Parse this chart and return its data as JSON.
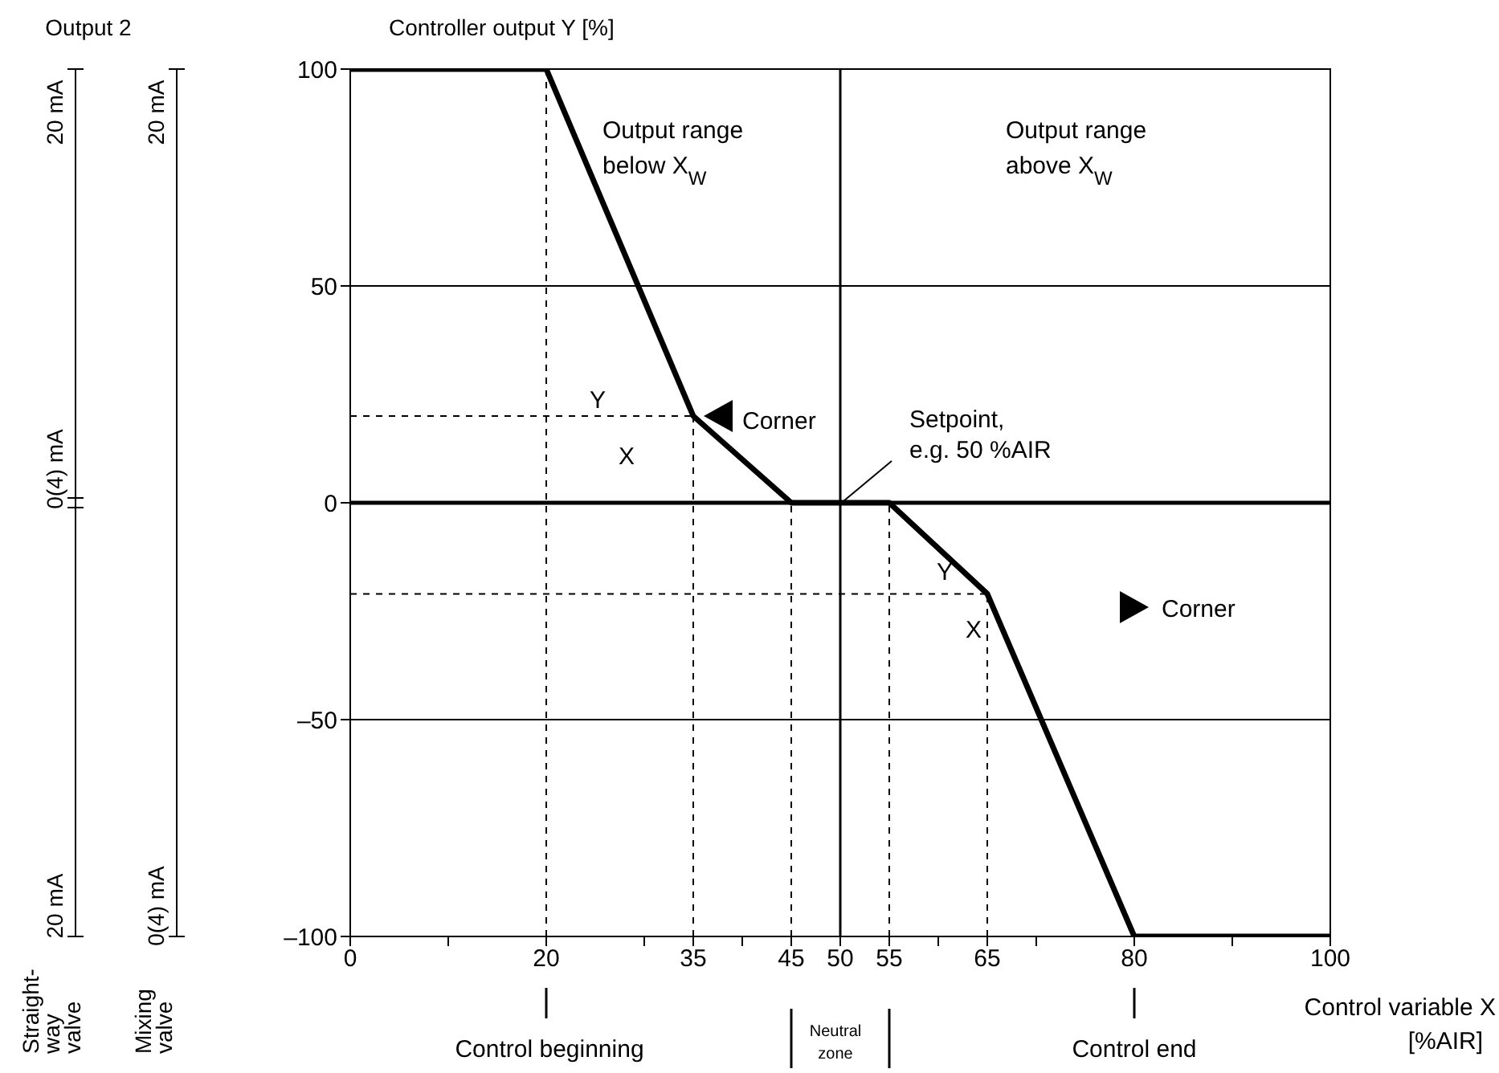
{
  "chart_data": {
    "type": "line",
    "ylabel": "Controller output Y [%]",
    "xlabel": "Control variable X\n[%AIR]",
    "series": [
      {
        "color": "#000000",
        "x": [
          0,
          20,
          35,
          45,
          55,
          65,
          80,
          100
        ],
        "values": [
          100,
          100,
          20,
          0,
          0,
          -21,
          -100,
          -100
        ]
      }
    ],
    "xlim": [
      0,
      100
    ],
    "ylim": [
      -100,
      100
    ],
    "xticks": [
      0,
      {
        "value": 10,
        "label": null
      },
      20,
      {
        "value": 30,
        "label": null
      },
      35,
      {
        "value": 40,
        "label": null
      },
      45,
      50,
      55,
      {
        "value": 60,
        "label": null
      },
      65,
      {
        "value": 70,
        "label": null
      },
      80,
      {
        "value": 90,
        "label": null
      },
      100
    ],
    "yticks": [
      {
        "value": -100,
        "label": "–100"
      },
      {
        "value": -50,
        "label": "–50"
      },
      0,
      50,
      100
    ],
    "grid": "y",
    "legend": false,
    "marker": "none",
    "line_style": "solid",
    "ref_lines": [
      {
        "axis": "x",
        "value": 50,
        "line_style": "solid"
      },
      {
        "axis": "y",
        "value": 0,
        "line_style": "solid"
      },
      {
        "axis": "x",
        "value": 20,
        "line_style": "dashed"
      },
      {
        "axis": "x",
        "value": 35,
        "line_style": "dashed"
      },
      {
        "axis": "x",
        "value": 45,
        "line_style": "dashed"
      },
      {
        "axis": "x",
        "value": 55,
        "line_style": "dashed"
      },
      {
        "axis": "x",
        "value": 65,
        "line_style": "dashed"
      },
      {
        "axis": "y",
        "value": 20,
        "line_style": "dashed"
      },
      {
        "axis": "y",
        "value": -21,
        "line_style": "dashed"
      }
    ],
    "annotations": [
      "Output 2",
      "20 mA",
      "0(4) mA",
      "20 mA",
      "20 mA",
      "0(4) mA",
      "Straight-\nway\nvalve",
      "Mixing\nvalve",
      "Output range\nbelow X$_{W}$",
      "Output range\nabove X$_{W}$",
      "Y",
      "X",
      "Corner",
      "Y",
      "X",
      "Corner",
      {
        "text": "Setpoint,\ne.g. 50 %AIR",
        "x": 50,
        "y": 0
      },
      "Control beginning",
      "Neutral\nzone",
      "Control end"
    ]
  }
}
